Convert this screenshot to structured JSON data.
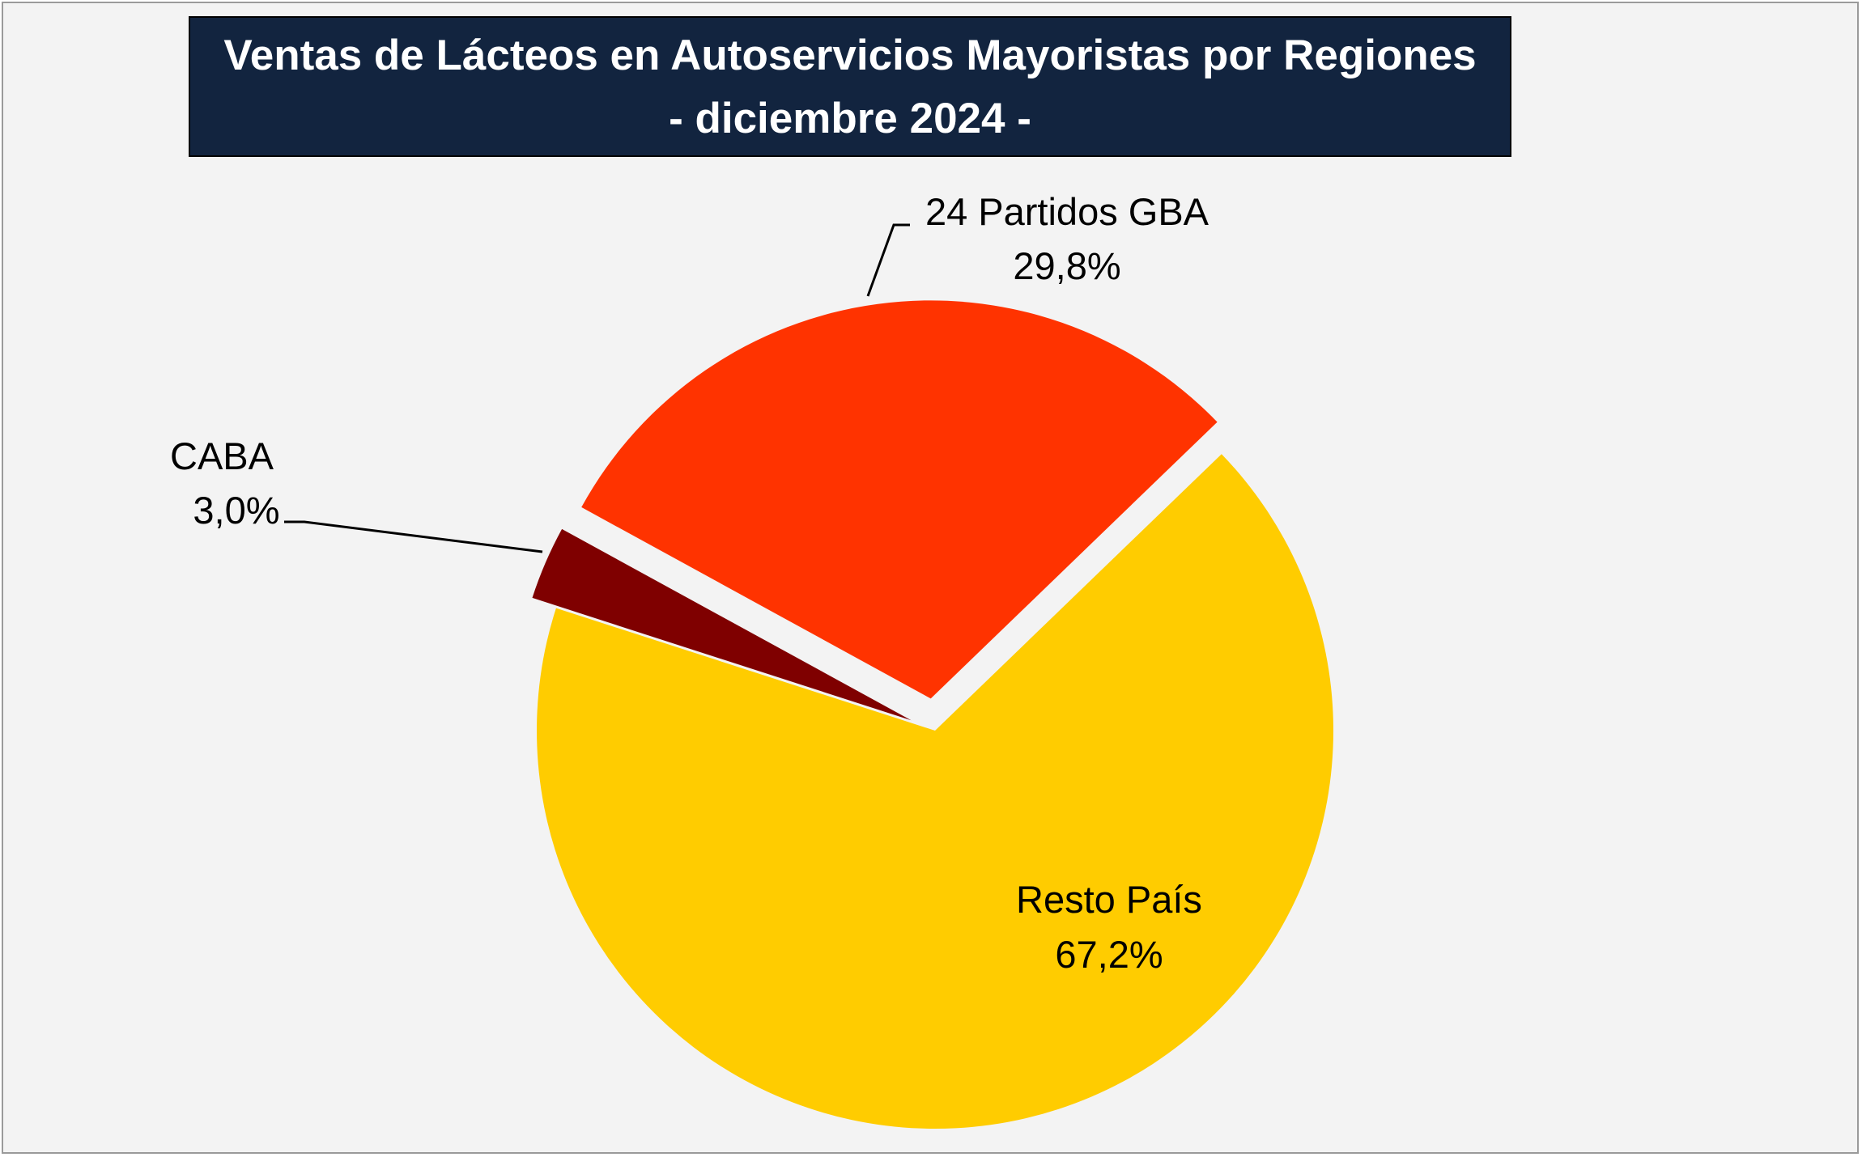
{
  "colors": {
    "background": "#f3f3f3",
    "title_bg": "#12243f",
    "title_text": "#ffffff"
  },
  "chart_data": {
    "type": "pie",
    "title": "Ventas de Lácteos en Autoservicios Mayoristas por Regiones",
    "subtitle": "- diciembre 2024 -",
    "exploded": true,
    "slices": [
      {
        "label": "Resto País",
        "value": 67.2,
        "value_label": "67,2%",
        "color": "#ffcc00"
      },
      {
        "label": "CABA",
        "value": 3.0,
        "value_label": "3,0%",
        "color": "#7f0000"
      },
      {
        "label": "24 Partidos GBA",
        "value": 29.8,
        "value_label": "29,8%",
        "color": "#ff3300"
      }
    ]
  }
}
